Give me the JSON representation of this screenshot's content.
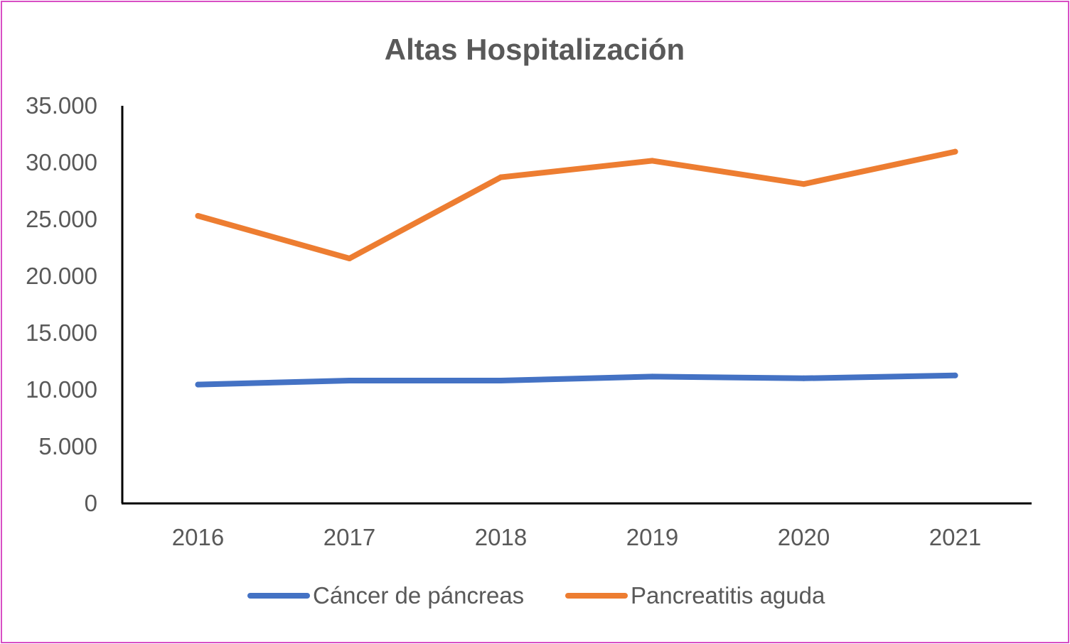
{
  "chart_data": {
    "type": "line",
    "title": "Altas Hospitalización",
    "xlabel": "",
    "ylabel": "",
    "categories": [
      "2016",
      "2017",
      "2018",
      "2019",
      "2020",
      "2021"
    ],
    "ylim": [
      0,
      35000
    ],
    "yticks": [
      0,
      5000,
      10000,
      15000,
      20000,
      25000,
      30000,
      35000
    ],
    "ytick_labels": [
      "0",
      "5.000",
      "10.000",
      "15.000",
      "20.000",
      "25.000",
      "30.000",
      "35.000"
    ],
    "grid": false,
    "legend_position": "bottom",
    "series": [
      {
        "name": "Cáncer de páncreas",
        "color": "#4472c4",
        "values": [
          10400,
          10750,
          10750,
          11100,
          10950,
          11200
        ]
      },
      {
        "name": "Pancreatitis aguda",
        "color": "#ed7d31",
        "values": [
          25250,
          21500,
          28650,
          30100,
          28050,
          30900
        ]
      }
    ]
  }
}
